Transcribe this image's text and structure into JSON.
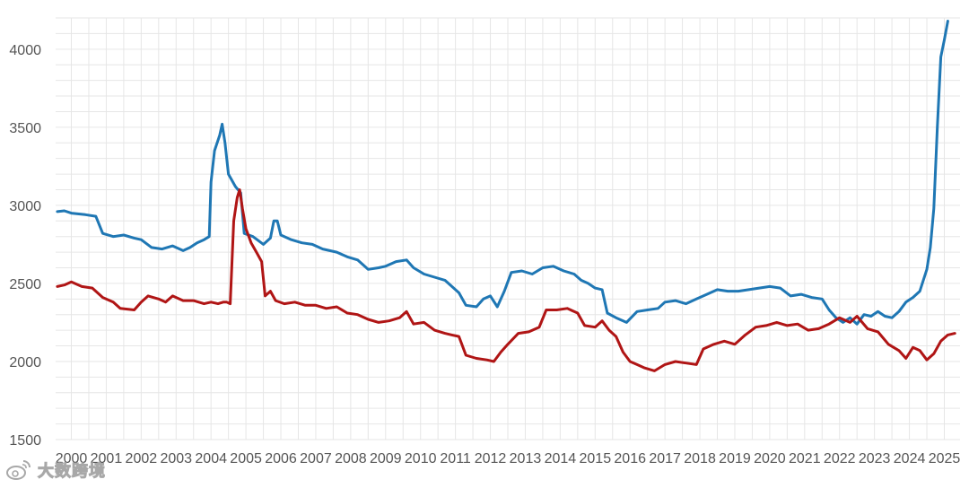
{
  "chart_data": {
    "type": "line",
    "title": "",
    "xlabel": "",
    "ylabel": "",
    "ylim": [
      1500,
      4200
    ],
    "xlim": [
      1999.55,
      2025.45
    ],
    "yticks": [
      1500,
      2000,
      2500,
      3000,
      3500,
      4000
    ],
    "xticks": [
      2000,
      2001,
      2002,
      2003,
      2004,
      2005,
      2006,
      2007,
      2008,
      2009,
      2010,
      2011,
      2012,
      2013,
      2014,
      2015,
      2016,
      2017,
      2018,
      2019,
      2020,
      2021,
      2022,
      2023,
      2024,
      2025
    ],
    "grid": true,
    "legend": "none",
    "series": [
      {
        "color": "#1f77b4",
        "points": [
          [
            1999.6,
            2960
          ],
          [
            1999.8,
            2965
          ],
          [
            2000.0,
            2950
          ],
          [
            2000.4,
            2940
          ],
          [
            2000.7,
            2930
          ],
          [
            2000.9,
            2820
          ],
          [
            2001.2,
            2800
          ],
          [
            2001.5,
            2810
          ],
          [
            2001.8,
            2790
          ],
          [
            2002.0,
            2780
          ],
          [
            2002.3,
            2730
          ],
          [
            2002.6,
            2720
          ],
          [
            2002.9,
            2740
          ],
          [
            2003.2,
            2710
          ],
          [
            2003.4,
            2730
          ],
          [
            2003.6,
            2760
          ],
          [
            2003.8,
            2780
          ],
          [
            2003.95,
            2800
          ],
          [
            2004.0,
            3150
          ],
          [
            2004.1,
            3350
          ],
          [
            2004.25,
            3450
          ],
          [
            2004.32,
            3520
          ],
          [
            2004.4,
            3400
          ],
          [
            2004.5,
            3200
          ],
          [
            2004.7,
            3120
          ],
          [
            2004.85,
            3080
          ],
          [
            2004.95,
            2820
          ],
          [
            2005.2,
            2800
          ],
          [
            2005.5,
            2750
          ],
          [
            2005.7,
            2790
          ],
          [
            2005.8,
            2900
          ],
          [
            2005.9,
            2900
          ],
          [
            2006.0,
            2810
          ],
          [
            2006.3,
            2780
          ],
          [
            2006.6,
            2760
          ],
          [
            2006.9,
            2750
          ],
          [
            2007.2,
            2720
          ],
          [
            2007.6,
            2700
          ],
          [
            2007.9,
            2670
          ],
          [
            2008.2,
            2650
          ],
          [
            2008.5,
            2590
          ],
          [
            2008.8,
            2600
          ],
          [
            2009.0,
            2610
          ],
          [
            2009.3,
            2640
          ],
          [
            2009.6,
            2650
          ],
          [
            2009.8,
            2600
          ],
          [
            2010.1,
            2560
          ],
          [
            2010.4,
            2540
          ],
          [
            2010.7,
            2520
          ],
          [
            2010.9,
            2480
          ],
          [
            2011.1,
            2440
          ],
          [
            2011.3,
            2360
          ],
          [
            2011.6,
            2350
          ],
          [
            2011.8,
            2400
          ],
          [
            2012.0,
            2420
          ],
          [
            2012.2,
            2350
          ],
          [
            2012.4,
            2450
          ],
          [
            2012.6,
            2570
          ],
          [
            2012.9,
            2580
          ],
          [
            2013.2,
            2560
          ],
          [
            2013.5,
            2600
          ],
          [
            2013.8,
            2610
          ],
          [
            2014.1,
            2580
          ],
          [
            2014.4,
            2560
          ],
          [
            2014.6,
            2520
          ],
          [
            2014.8,
            2500
          ],
          [
            2015.0,
            2470
          ],
          [
            2015.2,
            2460
          ],
          [
            2015.35,
            2310
          ],
          [
            2015.6,
            2280
          ],
          [
            2015.9,
            2250
          ],
          [
            2016.2,
            2320
          ],
          [
            2016.5,
            2330
          ],
          [
            2016.8,
            2340
          ],
          [
            2017.0,
            2380
          ],
          [
            2017.3,
            2390
          ],
          [
            2017.6,
            2370
          ],
          [
            2017.9,
            2400
          ],
          [
            2018.2,
            2430
          ],
          [
            2018.5,
            2460
          ],
          [
            2018.8,
            2450
          ],
          [
            2019.1,
            2450
          ],
          [
            2019.4,
            2460
          ],
          [
            2019.7,
            2470
          ],
          [
            2020.0,
            2480
          ],
          [
            2020.3,
            2470
          ],
          [
            2020.6,
            2420
          ],
          [
            2020.9,
            2430
          ],
          [
            2021.2,
            2410
          ],
          [
            2021.5,
            2400
          ],
          [
            2021.7,
            2330
          ],
          [
            2021.9,
            2280
          ],
          [
            2022.1,
            2250
          ],
          [
            2022.3,
            2280
          ],
          [
            2022.5,
            2240
          ],
          [
            2022.7,
            2300
          ],
          [
            2022.9,
            2290
          ],
          [
            2023.1,
            2320
          ],
          [
            2023.3,
            2290
          ],
          [
            2023.5,
            2280
          ],
          [
            2023.7,
            2320
          ],
          [
            2023.9,
            2380
          ],
          [
            2024.1,
            2410
          ],
          [
            2024.3,
            2450
          ],
          [
            2024.5,
            2590
          ],
          [
            2024.6,
            2730
          ],
          [
            2024.7,
            2980
          ],
          [
            2024.8,
            3500
          ],
          [
            2024.9,
            3950
          ],
          [
            2025.0,
            4060
          ],
          [
            2025.1,
            4180
          ]
        ]
      },
      {
        "color": "#b01515",
        "points": [
          [
            1999.6,
            2480
          ],
          [
            1999.8,
            2490
          ],
          [
            2000.0,
            2510
          ],
          [
            2000.3,
            2480
          ],
          [
            2000.6,
            2470
          ],
          [
            2000.9,
            2410
          ],
          [
            2001.2,
            2380
          ],
          [
            2001.4,
            2340
          ],
          [
            2001.8,
            2330
          ],
          [
            2002.0,
            2380
          ],
          [
            2002.2,
            2420
          ],
          [
            2002.5,
            2400
          ],
          [
            2002.7,
            2380
          ],
          [
            2002.9,
            2420
          ],
          [
            2003.2,
            2390
          ],
          [
            2003.5,
            2390
          ],
          [
            2003.8,
            2370
          ],
          [
            2004.0,
            2380
          ],
          [
            2004.2,
            2370
          ],
          [
            2004.35,
            2380
          ],
          [
            2004.45,
            2380
          ],
          [
            2004.55,
            2370
          ],
          [
            2004.65,
            2900
          ],
          [
            2004.75,
            3050
          ],
          [
            2004.82,
            3100
          ],
          [
            2004.9,
            2980
          ],
          [
            2005.0,
            2850
          ],
          [
            2005.15,
            2760
          ],
          [
            2005.3,
            2700
          ],
          [
            2005.45,
            2640
          ],
          [
            2005.55,
            2420
          ],
          [
            2005.7,
            2450
          ],
          [
            2005.85,
            2390
          ],
          [
            2006.1,
            2370
          ],
          [
            2006.4,
            2380
          ],
          [
            2006.7,
            2360
          ],
          [
            2007.0,
            2360
          ],
          [
            2007.3,
            2340
          ],
          [
            2007.6,
            2350
          ],
          [
            2007.9,
            2310
          ],
          [
            2008.2,
            2300
          ],
          [
            2008.5,
            2270
          ],
          [
            2008.8,
            2250
          ],
          [
            2009.1,
            2260
          ],
          [
            2009.4,
            2280
          ],
          [
            2009.6,
            2320
          ],
          [
            2009.8,
            2240
          ],
          [
            2010.1,
            2250
          ],
          [
            2010.4,
            2200
          ],
          [
            2010.7,
            2180
          ],
          [
            2010.9,
            2170
          ],
          [
            2011.1,
            2160
          ],
          [
            2011.3,
            2040
          ],
          [
            2011.6,
            2020
          ],
          [
            2011.9,
            2010
          ],
          [
            2012.1,
            2000
          ],
          [
            2012.3,
            2060
          ],
          [
            2012.5,
            2110
          ],
          [
            2012.8,
            2180
          ],
          [
            2013.1,
            2190
          ],
          [
            2013.4,
            2220
          ],
          [
            2013.6,
            2330
          ],
          [
            2013.9,
            2330
          ],
          [
            2014.2,
            2340
          ],
          [
            2014.5,
            2310
          ],
          [
            2014.7,
            2230
          ],
          [
            2015.0,
            2220
          ],
          [
            2015.2,
            2260
          ],
          [
            2015.4,
            2200
          ],
          [
            2015.6,
            2160
          ],
          [
            2015.8,
            2060
          ],
          [
            2016.0,
            2000
          ],
          [
            2016.2,
            1980
          ],
          [
            2016.4,
            1960
          ],
          [
            2016.7,
            1940
          ],
          [
            2017.0,
            1980
          ],
          [
            2017.3,
            2000
          ],
          [
            2017.6,
            1990
          ],
          [
            2017.9,
            1980
          ],
          [
            2018.1,
            2080
          ],
          [
            2018.4,
            2110
          ],
          [
            2018.7,
            2130
          ],
          [
            2019.0,
            2110
          ],
          [
            2019.3,
            2170
          ],
          [
            2019.6,
            2220
          ],
          [
            2019.9,
            2230
          ],
          [
            2020.2,
            2250
          ],
          [
            2020.5,
            2230
          ],
          [
            2020.8,
            2240
          ],
          [
            2021.1,
            2200
          ],
          [
            2021.4,
            2210
          ],
          [
            2021.7,
            2240
          ],
          [
            2022.0,
            2280
          ],
          [
            2022.3,
            2250
          ],
          [
            2022.5,
            2290
          ],
          [
            2022.8,
            2210
          ],
          [
            2023.1,
            2190
          ],
          [
            2023.4,
            2110
          ],
          [
            2023.7,
            2070
          ],
          [
            2023.9,
            2020
          ],
          [
            2024.1,
            2090
          ],
          [
            2024.3,
            2070
          ],
          [
            2024.5,
            2010
          ],
          [
            2024.7,
            2050
          ],
          [
            2024.9,
            2130
          ],
          [
            2025.1,
            2170
          ],
          [
            2025.3,
            2180
          ]
        ]
      }
    ]
  },
  "watermark": {
    "text": "大数跨境",
    "icon": "weibo-logo-icon"
  }
}
